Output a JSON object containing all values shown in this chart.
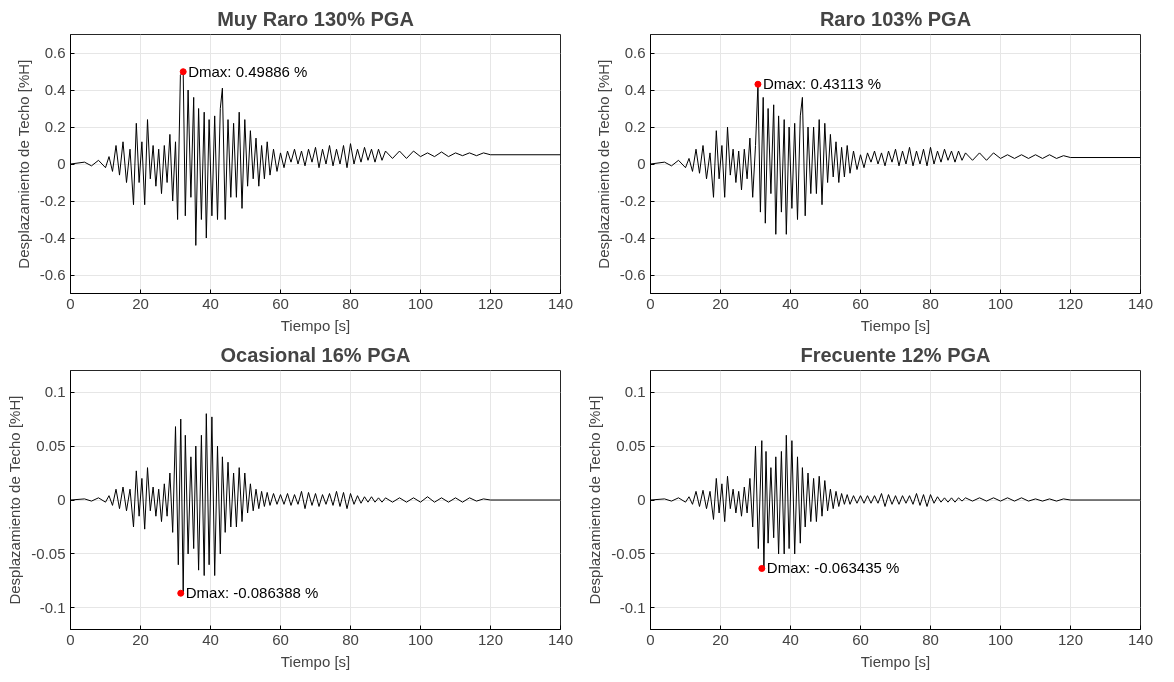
{
  "chart_data": [
    {
      "type": "line",
      "title": "Muy Raro 130% PGA",
      "xlabel": "Tiempo [s]",
      "ylabel": "Desplazamiento de Techo [%H]",
      "xlim": [
        0,
        140
      ],
      "ylim": [
        -0.7,
        0.7
      ],
      "xticks": [
        0,
        20,
        40,
        60,
        80,
        100,
        120,
        140
      ],
      "yticks": [
        -0.6,
        -0.4,
        -0.2,
        0,
        0.2,
        0.4,
        0.6
      ],
      "grid": true,
      "series": [
        {
          "color": "#000000",
          "x": [
            0,
            4,
            6,
            8,
            10,
            11,
            12,
            13,
            14,
            15,
            16,
            17,
            18,
            18.8,
            19.6,
            20.4,
            21.2,
            22,
            22.8,
            23.6,
            24.4,
            25.2,
            26,
            26.8,
            27.6,
            28.4,
            29.2,
            30,
            30.6,
            31.4,
            32.2,
            32.8,
            33.6,
            34.4,
            35.2,
            35.8,
            36.6,
            37.4,
            38.2,
            38.8,
            39.6,
            40.4,
            41.2,
            42,
            42.8,
            43.4,
            44.2,
            45,
            45.8,
            46.6,
            47.4,
            48.2,
            49,
            49.8,
            50.6,
            51.4,
            52.2,
            53,
            53.8,
            54.6,
            55.4,
            56.2,
            57,
            58,
            59,
            60,
            61,
            62,
            63,
            64,
            65,
            66,
            67,
            68,
            69,
            70,
            71,
            72,
            73,
            74,
            75,
            76,
            77,
            78,
            79,
            80,
            81,
            82,
            83,
            84,
            85,
            86,
            87,
            88,
            89,
            90,
            92,
            94,
            96,
            98,
            100,
            102,
            104,
            106,
            108,
            110,
            112,
            114,
            116,
            118,
            120,
            125,
            140
          ],
          "values": [
            0,
            0.01,
            -0.01,
            0.02,
            -0.02,
            0.04,
            -0.04,
            0.1,
            -0.06,
            0.12,
            -0.1,
            0.08,
            -0.22,
            0.22,
            -0.1,
            0.12,
            -0.22,
            0.24,
            -0.08,
            0.1,
            -0.12,
            0.08,
            -0.16,
            0.1,
            -0.1,
            0.16,
            -0.2,
            0.12,
            -0.3,
            0.48,
            0.49886,
            -0.28,
            0.4,
            -0.18,
            0.36,
            -0.44,
            0.3,
            -0.3,
            0.28,
            -0.4,
            0.24,
            -0.28,
            0.26,
            -0.3,
            0.3,
            0.41,
            -0.3,
            0.24,
            -0.18,
            0.22,
            -0.18,
            0.28,
            -0.24,
            0.24,
            -0.12,
            0.18,
            -0.08,
            0.14,
            -0.12,
            0.1,
            -0.08,
            0.12,
            -0.06,
            0.08,
            -0.04,
            0.06,
            -0.02,
            0.07,
            0.01,
            0.08,
            0,
            0.07,
            -0.01,
            0.08,
            0.01,
            0.09,
            -0.02,
            0.08,
            0,
            0.1,
            -0.01,
            0.08,
            0,
            0.1,
            -0.02,
            0.11,
            0,
            0.08,
            0.01,
            0.09,
            0.02,
            0.08,
            0.01,
            0.08,
            0.02,
            0.07,
            0.03,
            0.07,
            0.03,
            0.07,
            0.04,
            0.06,
            0.04,
            0.065,
            0.04,
            0.06,
            0.045,
            0.06,
            0.045,
            0.06,
            0.05,
            0.05,
            0.05
          ]
        }
      ],
      "annotations": [
        {
          "text": "Dmax: 0.49886 %",
          "x": 32.2,
          "y": 0.49886
        }
      ]
    },
    {
      "type": "line",
      "title": "Raro 103% PGA",
      "xlabel": "Tiempo [s]",
      "ylabel": "Desplazamiento de Techo [%H]",
      "xlim": [
        0,
        140
      ],
      "ylim": [
        -0.7,
        0.7
      ],
      "xticks": [
        0,
        20,
        40,
        60,
        80,
        100,
        120,
        140
      ],
      "yticks": [
        -0.6,
        -0.4,
        -0.2,
        0,
        0.2,
        0.4,
        0.6
      ],
      "grid": true,
      "series": [
        {
          "color": "#000000",
          "x": [
            0,
            4,
            6,
            8,
            10,
            11,
            12,
            13,
            14,
            15,
            16,
            17,
            18,
            18.8,
            19.6,
            20.4,
            21.2,
            22,
            22.8,
            23.6,
            24.4,
            25.2,
            26,
            26.8,
            27.6,
            28.4,
            29.2,
            30,
            30.7,
            31.4,
            32.2,
            32.8,
            33.6,
            34.4,
            35.2,
            35.8,
            36.6,
            37.4,
            38.2,
            38.8,
            39.6,
            40.4,
            41.2,
            42,
            42.8,
            43.4,
            44.2,
            45,
            45.8,
            46.6,
            47.4,
            48.2,
            49,
            49.8,
            50.6,
            51.4,
            52.2,
            53,
            53.8,
            54.6,
            55.4,
            56.2,
            57,
            58,
            59,
            60,
            61,
            62,
            63,
            64,
            65,
            66,
            67,
            68,
            69,
            70,
            71,
            72,
            73,
            74,
            75,
            76,
            77,
            78,
            79,
            80,
            81,
            82,
            83,
            84,
            85,
            86,
            87,
            88,
            89,
            90,
            92,
            94,
            96,
            98,
            100,
            102,
            104,
            106,
            108,
            110,
            112,
            114,
            116,
            118,
            120,
            125,
            140
          ],
          "values": [
            0,
            0.01,
            -0.01,
            0.02,
            -0.02,
            0.03,
            -0.04,
            0.08,
            -0.05,
            0.1,
            -0.08,
            0.06,
            -0.18,
            0.18,
            -0.08,
            0.1,
            -0.18,
            0.2,
            -0.06,
            0.08,
            -0.1,
            0.07,
            -0.14,
            0.08,
            -0.08,
            0.14,
            -0.18,
            0.1,
            0.43113,
            -0.26,
            0.36,
            -0.32,
            0.3,
            -0.16,
            0.32,
            -0.38,
            0.26,
            -0.26,
            0.24,
            -0.38,
            0.2,
            -0.24,
            0.22,
            -0.3,
            0.26,
            0.36,
            -0.28,
            0.2,
            -0.16,
            0.2,
            -0.16,
            0.24,
            -0.22,
            0.22,
            -0.1,
            0.16,
            -0.07,
            0.12,
            -0.1,
            0.09,
            -0.07,
            0.1,
            -0.05,
            0.07,
            -0.03,
            0.05,
            -0.02,
            0.06,
            0.01,
            0.07,
            0,
            0.06,
            -0.01,
            0.07,
            0.01,
            0.08,
            -0.01,
            0.07,
            0,
            0.09,
            -0.01,
            0.07,
            0,
            0.08,
            -0.01,
            0.09,
            0,
            0.07,
            0.01,
            0.08,
            0.02,
            0.07,
            0.01,
            0.07,
            0.02,
            0.06,
            0.02,
            0.06,
            0.02,
            0.06,
            0.03,
            0.05,
            0.03,
            0.05,
            0.03,
            0.05,
            0.03,
            0.05,
            0.03,
            0.045,
            0.035,
            0.035,
            0.035
          ]
        }
      ],
      "annotations": [
        {
          "text": "Dmax: 0.43113 %",
          "x": 30.7,
          "y": 0.43113
        }
      ]
    },
    {
      "type": "line",
      "title": "Ocasional 16% PGA",
      "xlabel": "Tiempo [s]",
      "ylabel": "Desplazamiento de Techo [%H]",
      "xlim": [
        0,
        140
      ],
      "ylim": [
        -0.12,
        0.12
      ],
      "xticks": [
        0,
        20,
        40,
        60,
        80,
        100,
        120,
        140
      ],
      "yticks": [
        -0.1,
        -0.05,
        0,
        0.05,
        0.1
      ],
      "grid": true,
      "series": [
        {
          "color": "#000000",
          "x": [
            0,
            4,
            6,
            8,
            10,
            11,
            12,
            13,
            14,
            15,
            16,
            17,
            18,
            18.8,
            19.6,
            20.4,
            21.2,
            22,
            22.8,
            23.6,
            24.4,
            25.2,
            26,
            26.8,
            27.6,
            28.4,
            29.2,
            30,
            30.8,
            31.5,
            32.2,
            32.8,
            33.6,
            34.4,
            35.2,
            35.8,
            36.6,
            37.4,
            38.2,
            38.8,
            39.6,
            40.4,
            41.2,
            42,
            42.8,
            43.4,
            44.2,
            45,
            45.8,
            46.6,
            47.4,
            48.2,
            49,
            49.8,
            50.6,
            51.4,
            52.2,
            53,
            53.8,
            54.6,
            55.4,
            56.2,
            57,
            58,
            59,
            60,
            61,
            62,
            63,
            64,
            65,
            66,
            67,
            68,
            69,
            70,
            71,
            72,
            73,
            74,
            75,
            76,
            77,
            78,
            79,
            80,
            81,
            82,
            83,
            84,
            85,
            86,
            87,
            88,
            89,
            90,
            92,
            94,
            96,
            98,
            100,
            102,
            104,
            106,
            108,
            110,
            112,
            114,
            116,
            118,
            120,
            125,
            140
          ],
          "values": [
            0,
            0.001,
            -0.001,
            0.002,
            -0.002,
            0.004,
            -0.005,
            0.01,
            -0.008,
            0.012,
            -0.01,
            0.01,
            -0.025,
            0.027,
            -0.015,
            0.02,
            -0.027,
            0.03,
            -0.01,
            0.012,
            -0.015,
            0.01,
            -0.02,
            0.015,
            -0.015,
            0.025,
            -0.03,
            0.068,
            -0.06,
            0.075,
            -0.086388,
            0.06,
            -0.05,
            0.04,
            -0.045,
            0.05,
            -0.065,
            0.06,
            -0.07,
            0.08,
            -0.06,
            0.077,
            -0.07,
            0.05,
            -0.05,
            0.04,
            -0.03,
            0.035,
            -0.025,
            0.025,
            -0.025,
            0.03,
            -0.02,
            0.025,
            -0.012,
            0.015,
            -0.01,
            0.01,
            -0.008,
            0.008,
            -0.006,
            0.007,
            -0.005,
            0.006,
            -0.004,
            0.005,
            -0.004,
            0.006,
            -0.005,
            0.005,
            -0.004,
            0.008,
            -0.008,
            0.007,
            -0.005,
            0.006,
            -0.006,
            0.005,
            -0.004,
            0.006,
            -0.005,
            0.008,
            -0.006,
            0.007,
            -0.008,
            0.006,
            -0.004,
            0.004,
            -0.003,
            0.003,
            -0.002,
            0.003,
            -0.002,
            0.002,
            -0.002,
            0.002,
            -0.002,
            0.002,
            -0.002,
            0.002,
            -0.002,
            0.003,
            -0.002,
            0.002,
            -0.002,
            0.002,
            -0.002,
            0.002,
            -0.001,
            0.001,
            0,
            0,
            0
          ]
        }
      ],
      "annotations": [
        {
          "text": "Dmax: -0.086388 %",
          "x": 31.5,
          "y": -0.086388
        }
      ]
    },
    {
      "type": "line",
      "title": "Frecuente 12% PGA",
      "xlabel": "Tiempo [s]",
      "ylabel": "Desplazamiento de Techo [%H]",
      "xlim": [
        0,
        140
      ],
      "ylim": [
        -0.12,
        0.12
      ],
      "xticks": [
        0,
        20,
        40,
        60,
        80,
        100,
        120,
        140
      ],
      "yticks": [
        -0.1,
        -0.05,
        0,
        0.05,
        0.1
      ],
      "grid": true,
      "series": [
        {
          "color": "#000000",
          "x": [
            0,
            4,
            6,
            8,
            10,
            11,
            12,
            13,
            14,
            15,
            16,
            17,
            18,
            18.8,
            19.6,
            20.4,
            21.2,
            22,
            22.8,
            23.6,
            24.4,
            25.2,
            26,
            26.8,
            27.6,
            28.4,
            29.2,
            30,
            30.8,
            31.8,
            32.4,
            33,
            33.6,
            34.4,
            35.2,
            35.8,
            36.6,
            37.4,
            38.2,
            38.8,
            39.6,
            40.4,
            41.2,
            42,
            42.8,
            43.4,
            44.2,
            45,
            45.8,
            46.6,
            47.4,
            48.2,
            49,
            49.8,
            50.6,
            51.4,
            52.2,
            53,
            53.8,
            54.6,
            55.4,
            56.2,
            57,
            58,
            59,
            60,
            61,
            62,
            63,
            64,
            65,
            66,
            67,
            68,
            69,
            70,
            71,
            72,
            73,
            74,
            75,
            76,
            77,
            78,
            79,
            80,
            81,
            82,
            83,
            84,
            85,
            86,
            87,
            88,
            89,
            90,
            92,
            94,
            96,
            98,
            100,
            102,
            104,
            106,
            108,
            110,
            112,
            114,
            116,
            118,
            120,
            125,
            140
          ],
          "values": [
            0,
            0.001,
            -0.001,
            0.002,
            -0.002,
            0.003,
            -0.004,
            0.008,
            -0.006,
            0.009,
            -0.008,
            0.008,
            -0.018,
            0.02,
            -0.012,
            0.015,
            -0.02,
            0.022,
            -0.008,
            0.01,
            -0.012,
            0.008,
            -0.015,
            0.012,
            -0.012,
            0.02,
            -0.025,
            0.05,
            -0.045,
            0.055,
            -0.063435,
            0.045,
            -0.04,
            0.03,
            -0.035,
            0.04,
            -0.05,
            0.045,
            -0.05,
            0.06,
            -0.045,
            0.055,
            -0.05,
            0.04,
            -0.04,
            0.03,
            -0.025,
            0.025,
            -0.02,
            0.02,
            -0.02,
            0.022,
            -0.015,
            0.018,
            -0.01,
            0.01,
            -0.008,
            0.008,
            -0.006,
            0.006,
            -0.004,
            0.005,
            -0.004,
            0.004,
            -0.003,
            0.004,
            -0.003,
            0.004,
            -0.003,
            0.004,
            -0.003,
            0.006,
            -0.006,
            0.005,
            -0.004,
            0.004,
            -0.004,
            0.004,
            -0.003,
            0.004,
            -0.004,
            0.006,
            -0.005,
            0.005,
            -0.006,
            0.005,
            -0.003,
            0.003,
            -0.002,
            0.002,
            -0.002,
            0.002,
            -0.002,
            0.002,
            -0.001,
            0.002,
            -0.001,
            0.002,
            -0.001,
            0.002,
            -0.001,
            0.002,
            -0.001,
            0.002,
            -0.001,
            0.001,
            -0.001,
            0.001,
            -0.001,
            0.001,
            0,
            0,
            0
          ]
        }
      ],
      "annotations": [
        {
          "text": "Dmax: -0.063435 %",
          "x": 31.8,
          "y": -0.063435
        }
      ]
    }
  ]
}
